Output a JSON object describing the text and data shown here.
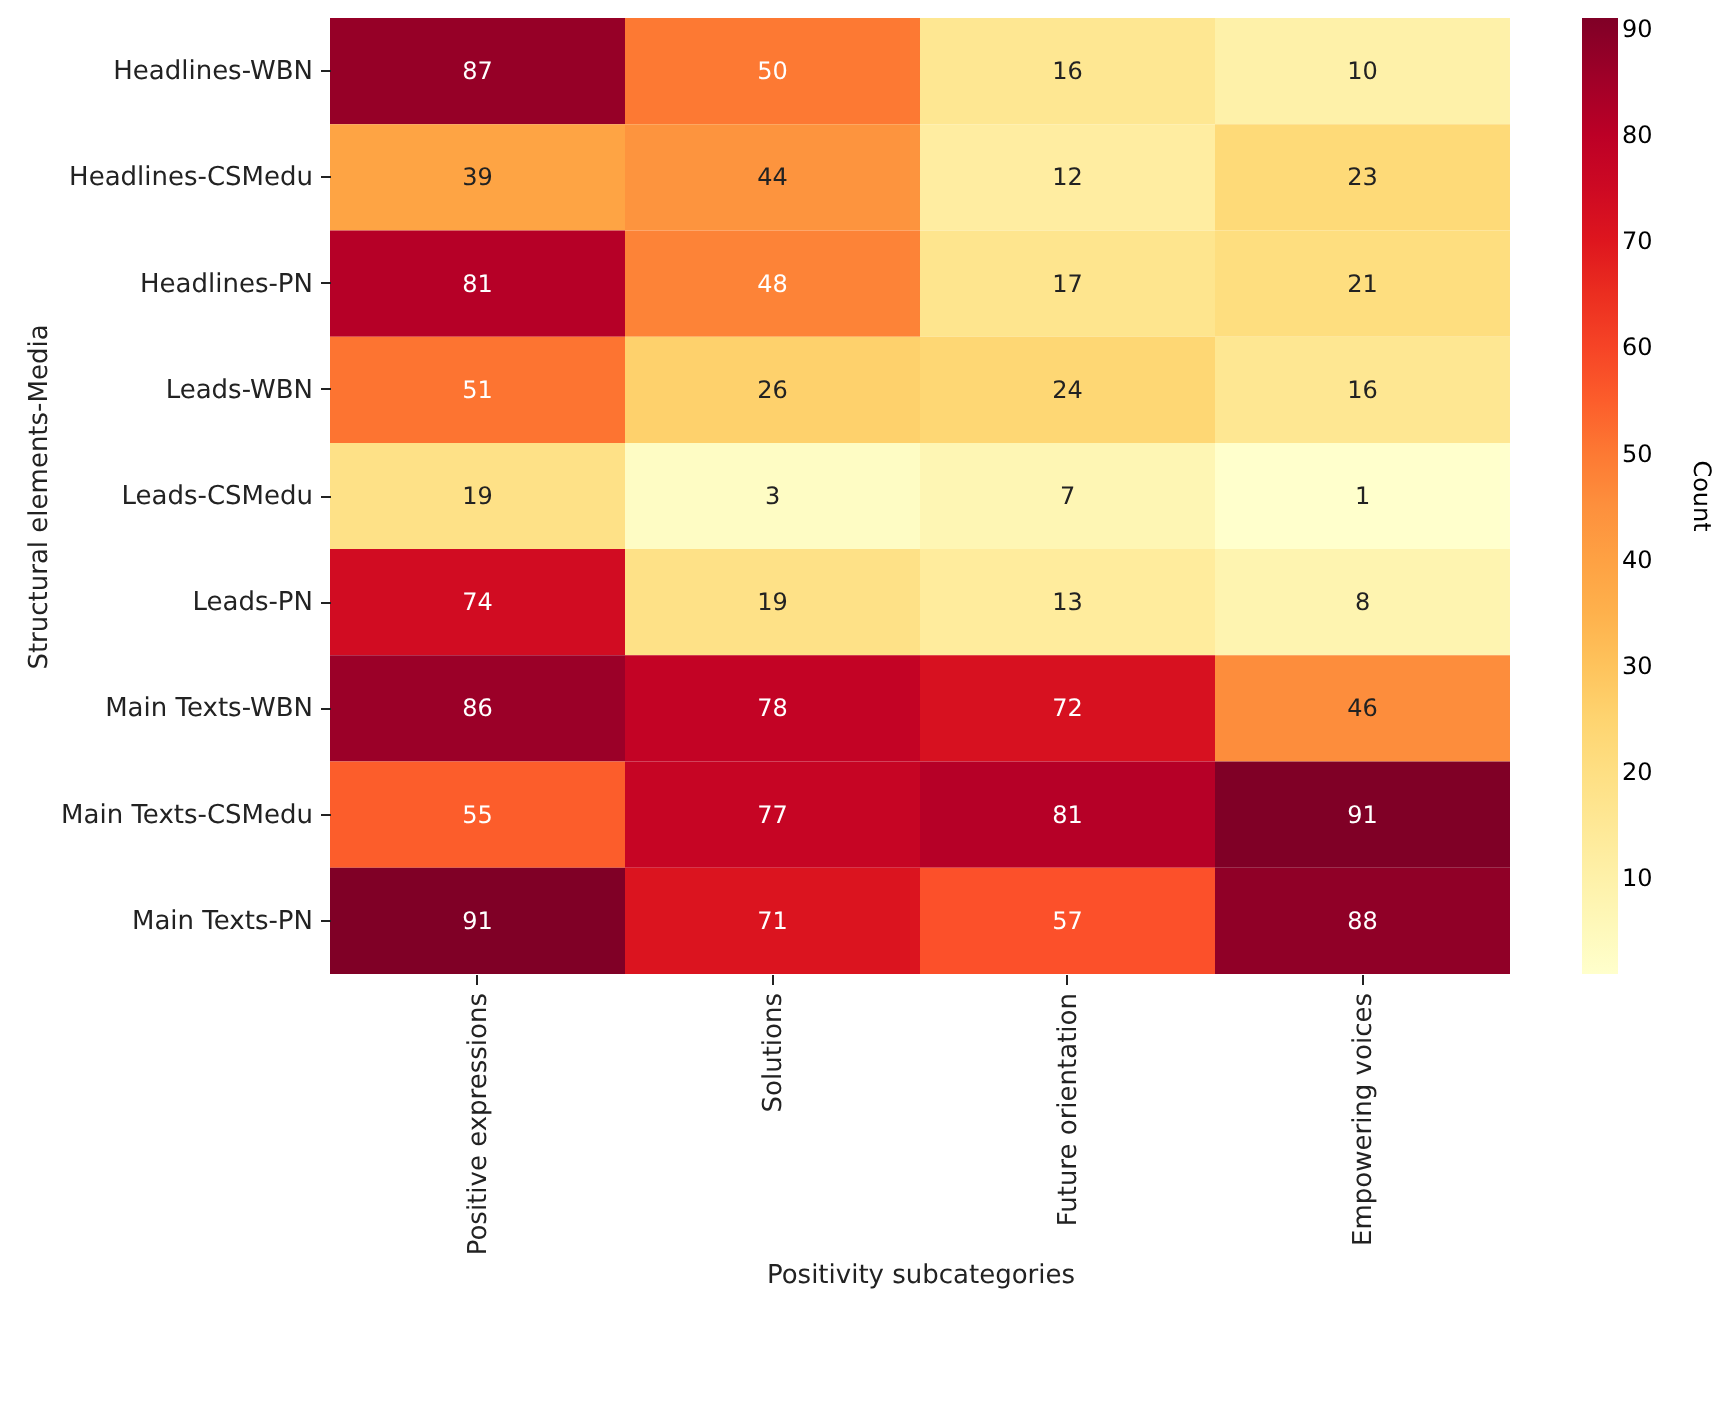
{
  "chart_data": {
    "type": "heatmap",
    "xlabel": "Positivity subcategories",
    "ylabel": "Structural elements-Media",
    "clabel": "Count",
    "categories": [
      "Positive expressions",
      "Solutions",
      "Future orientation",
      "Empowering voices"
    ],
    "y_categories": [
      "Headlines-WBN",
      "Headlines-CSMedu",
      "Headlines-PN",
      "Leads-WBN",
      "Leads-CSMedu",
      "Leads-PN",
      "Main Texts-WBN",
      "Main Texts-CSMedu",
      "Main Texts-PN"
    ],
    "cells": [
      [
        87,
        50,
        16,
        10
      ],
      [
        39,
        44,
        12,
        23
      ],
      [
        81,
        48,
        17,
        21
      ],
      [
        51,
        26,
        24,
        16
      ],
      [
        19,
        3,
        7,
        1
      ],
      [
        74,
        19,
        13,
        8
      ],
      [
        86,
        78,
        72,
        46
      ],
      [
        55,
        77,
        81,
        91
      ],
      [
        91,
        71,
        57,
        88
      ]
    ],
    "clim": [
      1,
      91
    ],
    "cticks": [
      10,
      20,
      30,
      40,
      50,
      60,
      70,
      80,
      90
    ],
    "data_labels": true
  }
}
